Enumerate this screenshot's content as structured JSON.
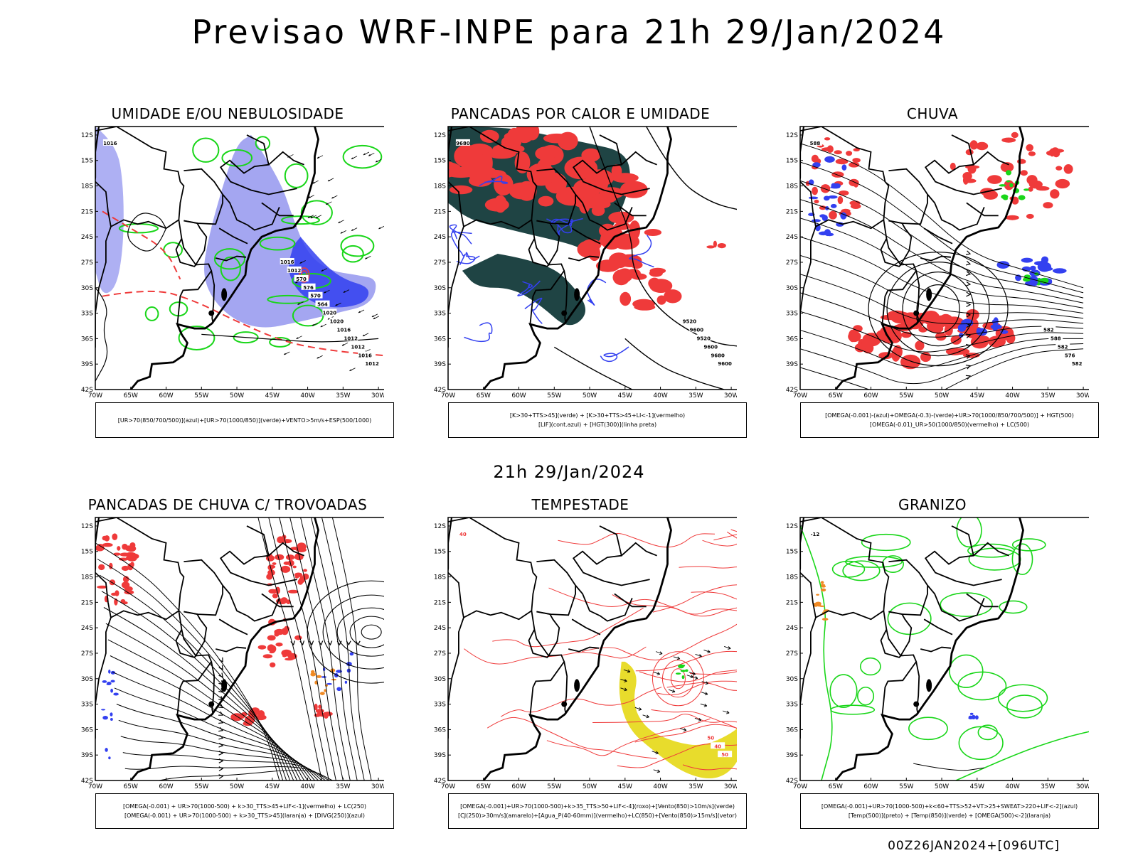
{
  "main_title": "Previsao WRF-INPE  para 21h 29/Jan/2024",
  "mid_title": "21h 29/Jan/2024",
  "footer": "00Z26JAN2024+[096UTC]",
  "lat_labels": [
    "12S",
    "15S",
    "18S",
    "21S",
    "24S",
    "27S",
    "30S",
    "33S",
    "36S",
    "39S",
    "42S"
  ],
  "lon_labels": [
    "70W",
    "65W",
    "60W",
    "55W",
    "50W",
    "45W",
    "40W",
    "35W",
    "30W"
  ],
  "colors": {
    "blue": "#3340f0",
    "light_blue": "#9a9cf0",
    "green": "#19d619",
    "red": "#ef3a3a",
    "dark_teal": "#1f4444",
    "yellow": "#e8dc2c",
    "orange": "#f08a24",
    "black": "#000000"
  },
  "panels": [
    {
      "title": "UMIDADE E/OU NEBULOSIDADE",
      "legend": [
        "[UR>70(850/700/500)](azul)+[UR>70(1000/850)](verde)+VENTO>5m/s+ESP(500/1000)"
      ],
      "contour_labels": [
        "1016",
        "1012",
        "1016",
        "1012",
        "1012",
        "1016",
        "1020",
        "1020",
        "564",
        "570",
        "576",
        "570",
        "1012",
        "1016"
      ]
    },
    {
      "title": "PANCADAS POR CALOR E UMIDADE",
      "legend": [
        "[K>30+TTS>45](verde) + [K>30+TTS>45+LI<-1](vermelho)",
        "[LIF](cont.azul) + [HGT(300)](linha preta)"
      ],
      "contour_labels": [
        "9680",
        "9600",
        "9680",
        "9600",
        "9520",
        "9600",
        "9520"
      ]
    },
    {
      "title": "CHUVA",
      "legend": [
        "[OMEGA(-0.001)-(azul)+OMEGA(-0.3)-(verde)+UR>70(1000/850/700/500)] + HGT(500)",
        "[OMEGA(-0.01)_UR>50(1000/850)(vermelho) + LC(500)"
      ],
      "contour_labels": [
        "588",
        "582",
        "576",
        "582",
        "588",
        "582"
      ]
    },
    {
      "title": "PANCADAS DE CHUVA C/ TROVOADAS",
      "legend": [
        "[OMEGA(-0.001) + UR>70(1000-500) + k>30_TTS>45+LIF<-1](vermelho) + LC(250)",
        "[OMEGA(-0.001) + UR>70(1000-500) + k>30_TTS>45](laranja) + [DIVG(250)](azul)"
      ],
      "contour_labels": []
    },
    {
      "title": "TEMPESTADE",
      "legend": [
        "[OMEGA(-0.001)+UR>70(1000-500)+k>35_TTS>50+LIF<-4](roxo)+[Vento(850)>10m/s](verde)",
        "[CJ(250)>30m/s](amarelo)+[Agua_P(40-60mm)](vermelho)+LC(850)+[Vento(850)>15m/s](vetor)"
      ],
      "contour_labels": [
        "40",
        "50",
        "40",
        "50"
      ]
    },
    {
      "title": "GRANIZO",
      "legend": [
        "[OMEGA(-0.001)+UR>70(1000-500)+k<60+TTS>52+VT>25+SWEAT>220+LIF<-2](azul)",
        "[Temp(500)](preto) + [Temp(850)](verde) + [OMEGA(500)<-2](laranja)"
      ],
      "contour_labels": [
        "-12"
      ]
    }
  ]
}
